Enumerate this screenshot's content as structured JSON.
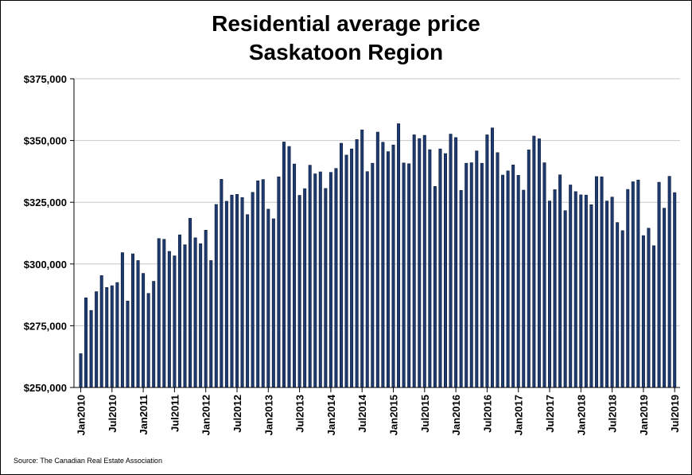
{
  "chart_data": {
    "type": "bar",
    "title": [
      "Residential average price",
      "Saskatoon Region"
    ],
    "source": "Source: The Canadian Real Estate Association",
    "bar_color": "#1f3a6e",
    "bar_edge_color": "#0b1a3a",
    "grid": true,
    "ylim": [
      250000,
      375000
    ],
    "y_ticks": [
      250000,
      275000,
      300000,
      325000,
      350000,
      375000
    ],
    "y_tick_labels": [
      "$250,000",
      "$275,000",
      "$300,000",
      "$325,000",
      "$350,000",
      "$375,000"
    ],
    "x_tick_labels": [
      "Jan2010",
      "Jul2010",
      "Jan2011",
      "Jul2011",
      "Jan2012",
      "Jul2012",
      "Jan2013",
      "Jul2013",
      "Jan2014",
      "Jul2014",
      "Jan2015",
      "Jul2015",
      "Jan2016",
      "Jul2016",
      "Jan2017",
      "Jul2017",
      "Jan2018",
      "Jul2018",
      "Jan2019",
      "Jul2019"
    ],
    "x_tick_months": [
      0,
      6,
      12,
      18,
      24,
      30,
      36,
      42,
      48,
      54,
      60,
      66,
      72,
      78,
      84,
      90,
      96,
      102,
      108,
      114
    ],
    "start": "Jan2010",
    "values": [
      263700,
      286300,
      281200,
      288800,
      295300,
      290500,
      291200,
      292500,
      304600,
      285000,
      304100,
      301400,
      296200,
      288100,
      293000,
      310300,
      310000,
      305100,
      303300,
      311800,
      307800,
      318500,
      310600,
      308200,
      313700,
      301400,
      324100,
      334300,
      325400,
      327900,
      328200,
      326900,
      320000,
      329000,
      333700,
      334200,
      322200,
      318300,
      335300,
      349400,
      347600,
      340500,
      327800,
      330500,
      340000,
      336500,
      337300,
      330600,
      337100,
      338700,
      348900,
      344100,
      346600,
      350400,
      354300,
      337400,
      340800,
      353400,
      349300,
      345500,
      348200,
      356800,
      340900,
      340600,
      352300,
      350800,
      352100,
      346300,
      331400,
      346600,
      344700,
      352600,
      351200,
      329800,
      340800,
      341000,
      345800,
      340800,
      352300,
      355100,
      345100,
      336000,
      337700,
      340100,
      335900,
      329900,
      346200,
      351800,
      350700,
      341000,
      325500,
      330100,
      336100,
      321600,
      332000,
      329300,
      328000,
      327900,
      324000,
      335400,
      335300,
      325500,
      327100,
      316800,
      313500,
      330200,
      333300,
      334000,
      311500,
      314500,
      307400,
      333100,
      322600,
      335500,
      328900
    ]
  }
}
